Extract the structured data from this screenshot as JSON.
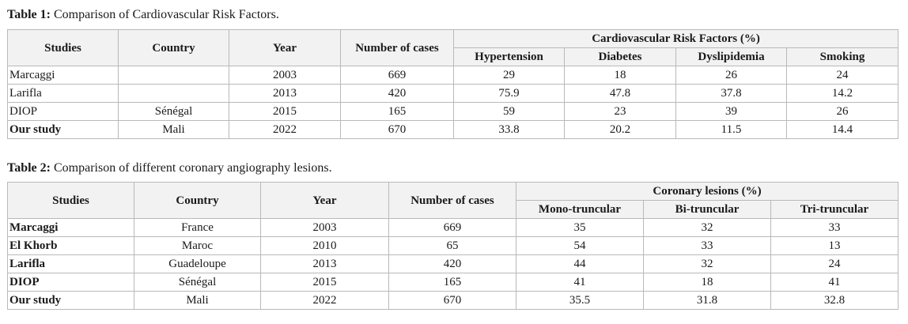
{
  "table1": {
    "caption_label": "Table 1:",
    "caption_text": " Comparison of Cardiovascular Risk Factors.",
    "headers": {
      "studies": "Studies",
      "country": "Country",
      "year": "Year",
      "cases": "Number of cases",
      "group": "Cardiovascular Risk Factors (%)",
      "sub": [
        "Hypertension",
        "Diabetes",
        "Dyslipidemia",
        "Smoking"
      ]
    },
    "rows": [
      {
        "study": "Marcaggi",
        "country": "",
        "year": "2003",
        "cases": "669",
        "v1": "29",
        "v2": "18",
        "v3": "26",
        "v4": "24"
      },
      {
        "study": "Larifla",
        "country": "",
        "year": "2013",
        "cases": "420",
        "v1": "75.9",
        "v2": "47.8",
        "v3": "37.8",
        "v4": "14.2"
      },
      {
        "study": "DIOP",
        "country": "Sénégal",
        "year": "2015",
        "cases": "165",
        "v1": "59",
        "v2": "23",
        "v3": "39",
        "v4": "26"
      },
      {
        "study": "Our study",
        "country": "Mali",
        "year": "2022",
        "cases": "670",
        "v1": "33.8",
        "v2": "20.2",
        "v3": "11.5",
        "v4": "14.4"
      }
    ]
  },
  "table2": {
    "caption_label": "Table 2:",
    "caption_text": " Comparison of different coronary angiography lesions.",
    "headers": {
      "studies": "Studies",
      "country": "Country",
      "year": "Year",
      "cases": "Number of cases",
      "group": "Coronary lesions (%)",
      "sub": [
        "Mono-truncular",
        "Bi-truncular",
        "Tri-truncular"
      ]
    },
    "rows": [
      {
        "study": "Marcaggi",
        "country": "France",
        "year": "2003",
        "cases": "669",
        "v1": "35",
        "v2": "32",
        "v3": "33"
      },
      {
        "study": "El Khorb",
        "country": "Maroc",
        "year": "2010",
        "cases": "65",
        "v1": "54",
        "v2": "33",
        "v3": "13"
      },
      {
        "study": "Larifla",
        "country": "Guadeloupe",
        "year": "2013",
        "cases": "420",
        "v1": "44",
        "v2": "32",
        "v3": "24"
      },
      {
        "study": "DIOP",
        "country": "Sénégal",
        "year": "2015",
        "cases": "165",
        "v1": "41",
        "v2": "18",
        "v3": "41"
      },
      {
        "study": "Our study",
        "country": "Mali",
        "year": "2022",
        "cases": "670",
        "v1": "35.5",
        "v2": "31.8",
        "v3": "32.8"
      }
    ]
  }
}
